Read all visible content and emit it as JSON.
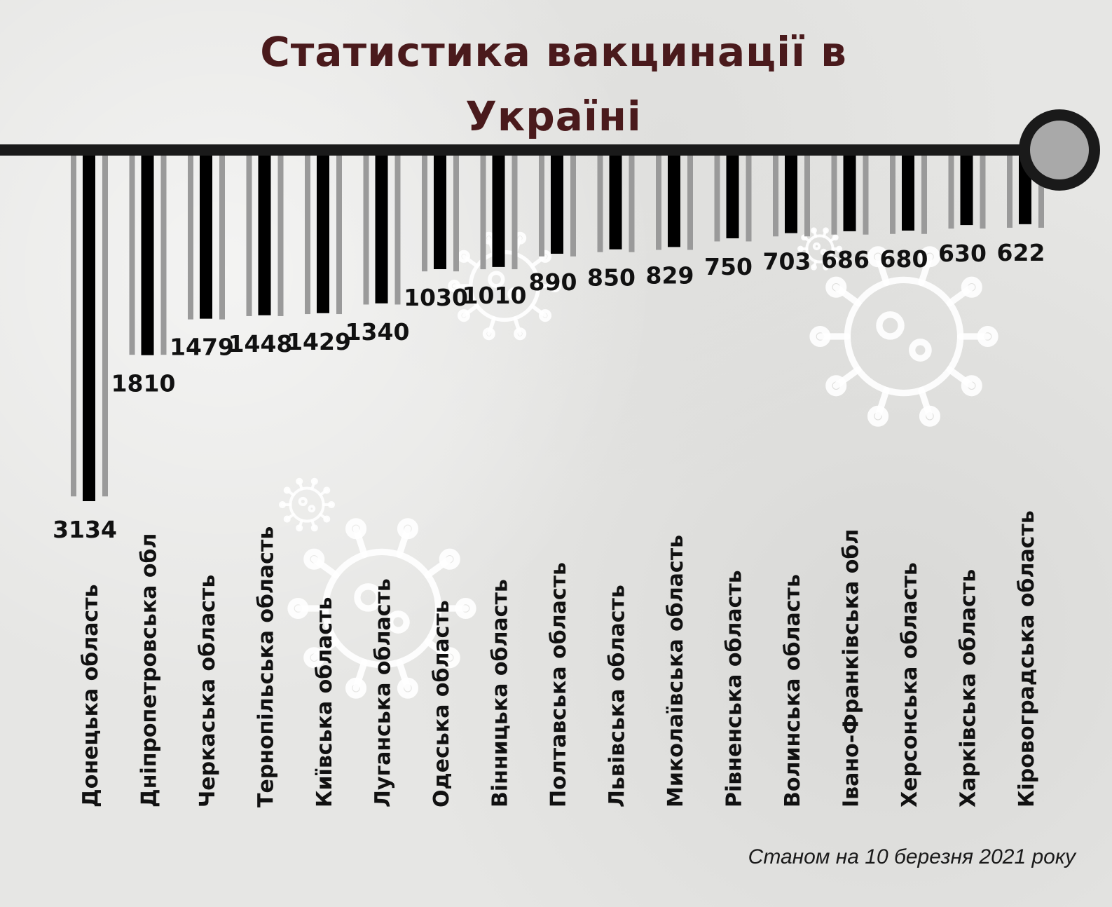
{
  "title": "Статистика вакцинації в Україні",
  "footnote": "Станом на 10 березня 2021 року",
  "colors": {
    "title": "#4a1a1c",
    "bar": "#000000",
    "stripe": "#9a9a9a",
    "axis": "#1a1a1a",
    "highlight_label": "#4a1a1c"
  },
  "chart_data": {
    "type": "bar",
    "orientation": "vertical-downward",
    "title": "Статистика вакцинації в Україні",
    "categories": [
      "Донецька область",
      "Дніпропетровська обл",
      "Черкаська область",
      "Тернопільська область",
      "Київська область",
      "Луганська область",
      "Одеська область",
      "Вінницька область",
      "Полтавська область",
      "Львівська область",
      "Миколаївська область",
      "Рівненська область",
      "Волинська область",
      "Івано-Франківська обл",
      "Херсонська область",
      "Харківська область",
      "Кіровоградська область"
    ],
    "values": [
      3134,
      1810,
      1479,
      1448,
      1429,
      1340,
      1030,
      1010,
      890,
      850,
      829,
      750,
      703,
      686,
      680,
      630,
      622
    ],
    "highlighted_category": "Івано-Франківська обл",
    "ylim": [
      0,
      3134
    ],
    "grid": false,
    "legend": "none"
  }
}
